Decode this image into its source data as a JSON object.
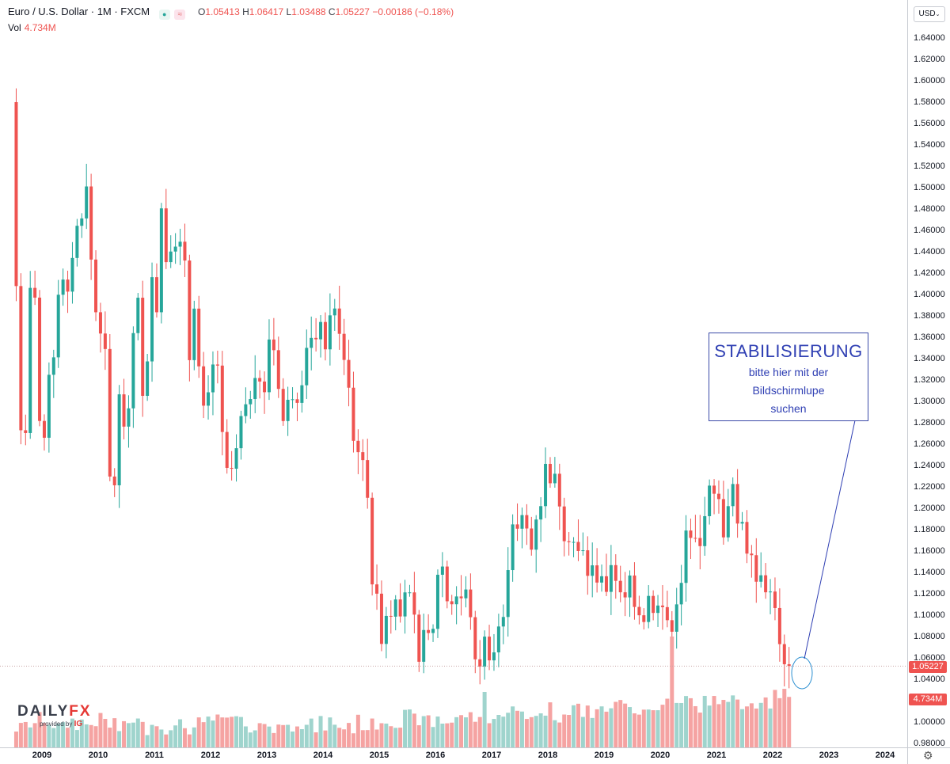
{
  "header": {
    "symbol": "Euro / U.S. Dollar · 1M · FXCM",
    "dot_icon": "●",
    "wave_icon": "≈",
    "ohlc": {
      "o_label": "O",
      "o": "1.05413",
      "h_label": "H",
      "h": "1.06417",
      "l_label": "L",
      "l": "1.03488",
      "c_label": "C",
      "c": "1.05227",
      "change": "−0.00186 (−0.18%)"
    },
    "vol_label": "Vol",
    "vol_value": "4.734M"
  },
  "currency": "USD",
  "last_price_tag": "1.05227",
  "volume_tag": "4.734M",
  "annotation": {
    "title": "STABILISIERUNG",
    "line1": "bitte hier mit der",
    "line2": "Bildschirmlupe",
    "line3": "suchen"
  },
  "logo": {
    "main_a": "DAILY",
    "main_b": "FX",
    "provided": "provided by",
    "ig": "IG"
  },
  "colors": {
    "up": "#26a69a",
    "down": "#ef5350",
    "vol_up": "#9fd4cd",
    "vol_down": "#f5a3a2",
    "annotation": "#2f3fb3"
  },
  "chart_data": {
    "type": "candlestick",
    "title": "Euro / U.S. Dollar",
    "timeframe": "1M",
    "x_ticks": [
      "2009",
      "2010",
      "2011",
      "2012",
      "2013",
      "2014",
      "2015",
      "2016",
      "2017",
      "2018",
      "2019",
      "2020",
      "2021",
      "2022",
      "2023",
      "2024"
    ],
    "y_ticks": [
      "1.64000",
      "1.62000",
      "1.60000",
      "1.58000",
      "1.56000",
      "1.54000",
      "1.52000",
      "1.50000",
      "1.48000",
      "1.46000",
      "1.44000",
      "1.42000",
      "1.40000",
      "1.38000",
      "1.36000",
      "1.34000",
      "1.32000",
      "1.30000",
      "1.28000",
      "1.26000",
      "1.24000",
      "1.22000",
      "1.20000",
      "1.18000",
      "1.16000",
      "1.14000",
      "1.12000",
      "1.10000",
      "1.08000",
      "1.06000",
      "1.04000",
      "1.02000",
      "1.00000",
      "0.98000"
    ],
    "ylim": [
      0.98,
      1.65
    ],
    "x_start": "2008-07",
    "x_end": "2024-01",
    "monthly_close": [
      1.4079,
      1.273,
      1.2704,
      1.4062,
      1.3971,
      1.2817,
      1.266,
      1.3249,
      1.3412,
      1.3998,
      1.414,
      1.4027,
      1.4342,
      1.4643,
      1.4712,
      1.5011,
      1.4327,
      1.3834,
      1.3635,
      1.349,
      1.2297,
      1.2215,
      1.3066,
      1.2764,
      1.2935,
      1.3639,
      1.397,
      1.3052,
      1.3374,
      1.4162,
      1.3834,
      1.4806,
      1.4303,
      1.4402,
      1.4448,
      1.4494,
      1.4318,
      1.3386,
      1.3868,
      1.3328,
      1.296,
      1.3085,
      1.3345,
      1.3335,
      1.2714,
      1.2378,
      1.237,
      1.2562,
      1.2863,
      1.2973,
      1.3022,
      1.3219,
      1.3186,
      1.3086,
      1.3579,
      1.3479,
      1.3117,
      1.2816,
      1.3015,
      1.302,
      1.2986,
      1.3151,
      1.3501,
      1.3594,
      1.3581,
      1.3743,
      1.3487,
      1.3805,
      1.3869,
      1.3632,
      1.3388,
      1.3128,
      1.2631,
      1.2525,
      1.2451,
      1.2098,
      1.1288,
      1.1201,
      1.0731,
      1.0993,
      1.0986,
      1.1147,
      1.0988,
      1.1213,
      1.1213,
      1.1005,
      1.0564,
      1.0861,
      1.0833,
      1.0872,
      1.1378,
      1.1455,
      1.113,
      1.1102,
      1.1175,
      1.1158,
      1.124,
      1.0981,
      1.0587,
      1.0518,
      1.0799,
      1.0577,
      1.0652,
      1.0894,
      1.0983,
      1.1422,
      1.1849,
      1.1809,
      1.1936,
      1.1811,
      1.1613,
      1.1895,
      1.202,
      1.2415,
      1.2234,
      1.2323,
      1.2017,
      1.1692,
      1.1683,
      1.1685,
      1.16,
      1.1607,
      1.1368,
      1.1466,
      1.1305,
      1.1364,
      1.1218,
      1.1468,
      1.1321,
      1.1214,
      1.1166,
      1.1371,
      1.1077,
      1.0999,
      1.0936,
      1.118,
      1.1021,
      1.109,
      1.1075,
      1.0953,
      1.0845,
      1.1101,
      1.1302,
      1.1792,
      1.1723,
      1.1722,
      1.1646,
      1.1926,
      1.2212,
      1.2136,
      1.2086,
      1.1728,
      1.202,
      1.2227,
      1.1857,
      1.1872,
      1.1576,
      1.1561,
      1.1313,
      1.1373,
      1.1214,
      1.1221,
      1.1067,
      1.0729,
      1.0541,
      1.0523
    ],
    "volume_note": "monthly volume bars, latest 4.734M",
    "last_price": 1.05227,
    "annotation_target": "2022-05"
  }
}
